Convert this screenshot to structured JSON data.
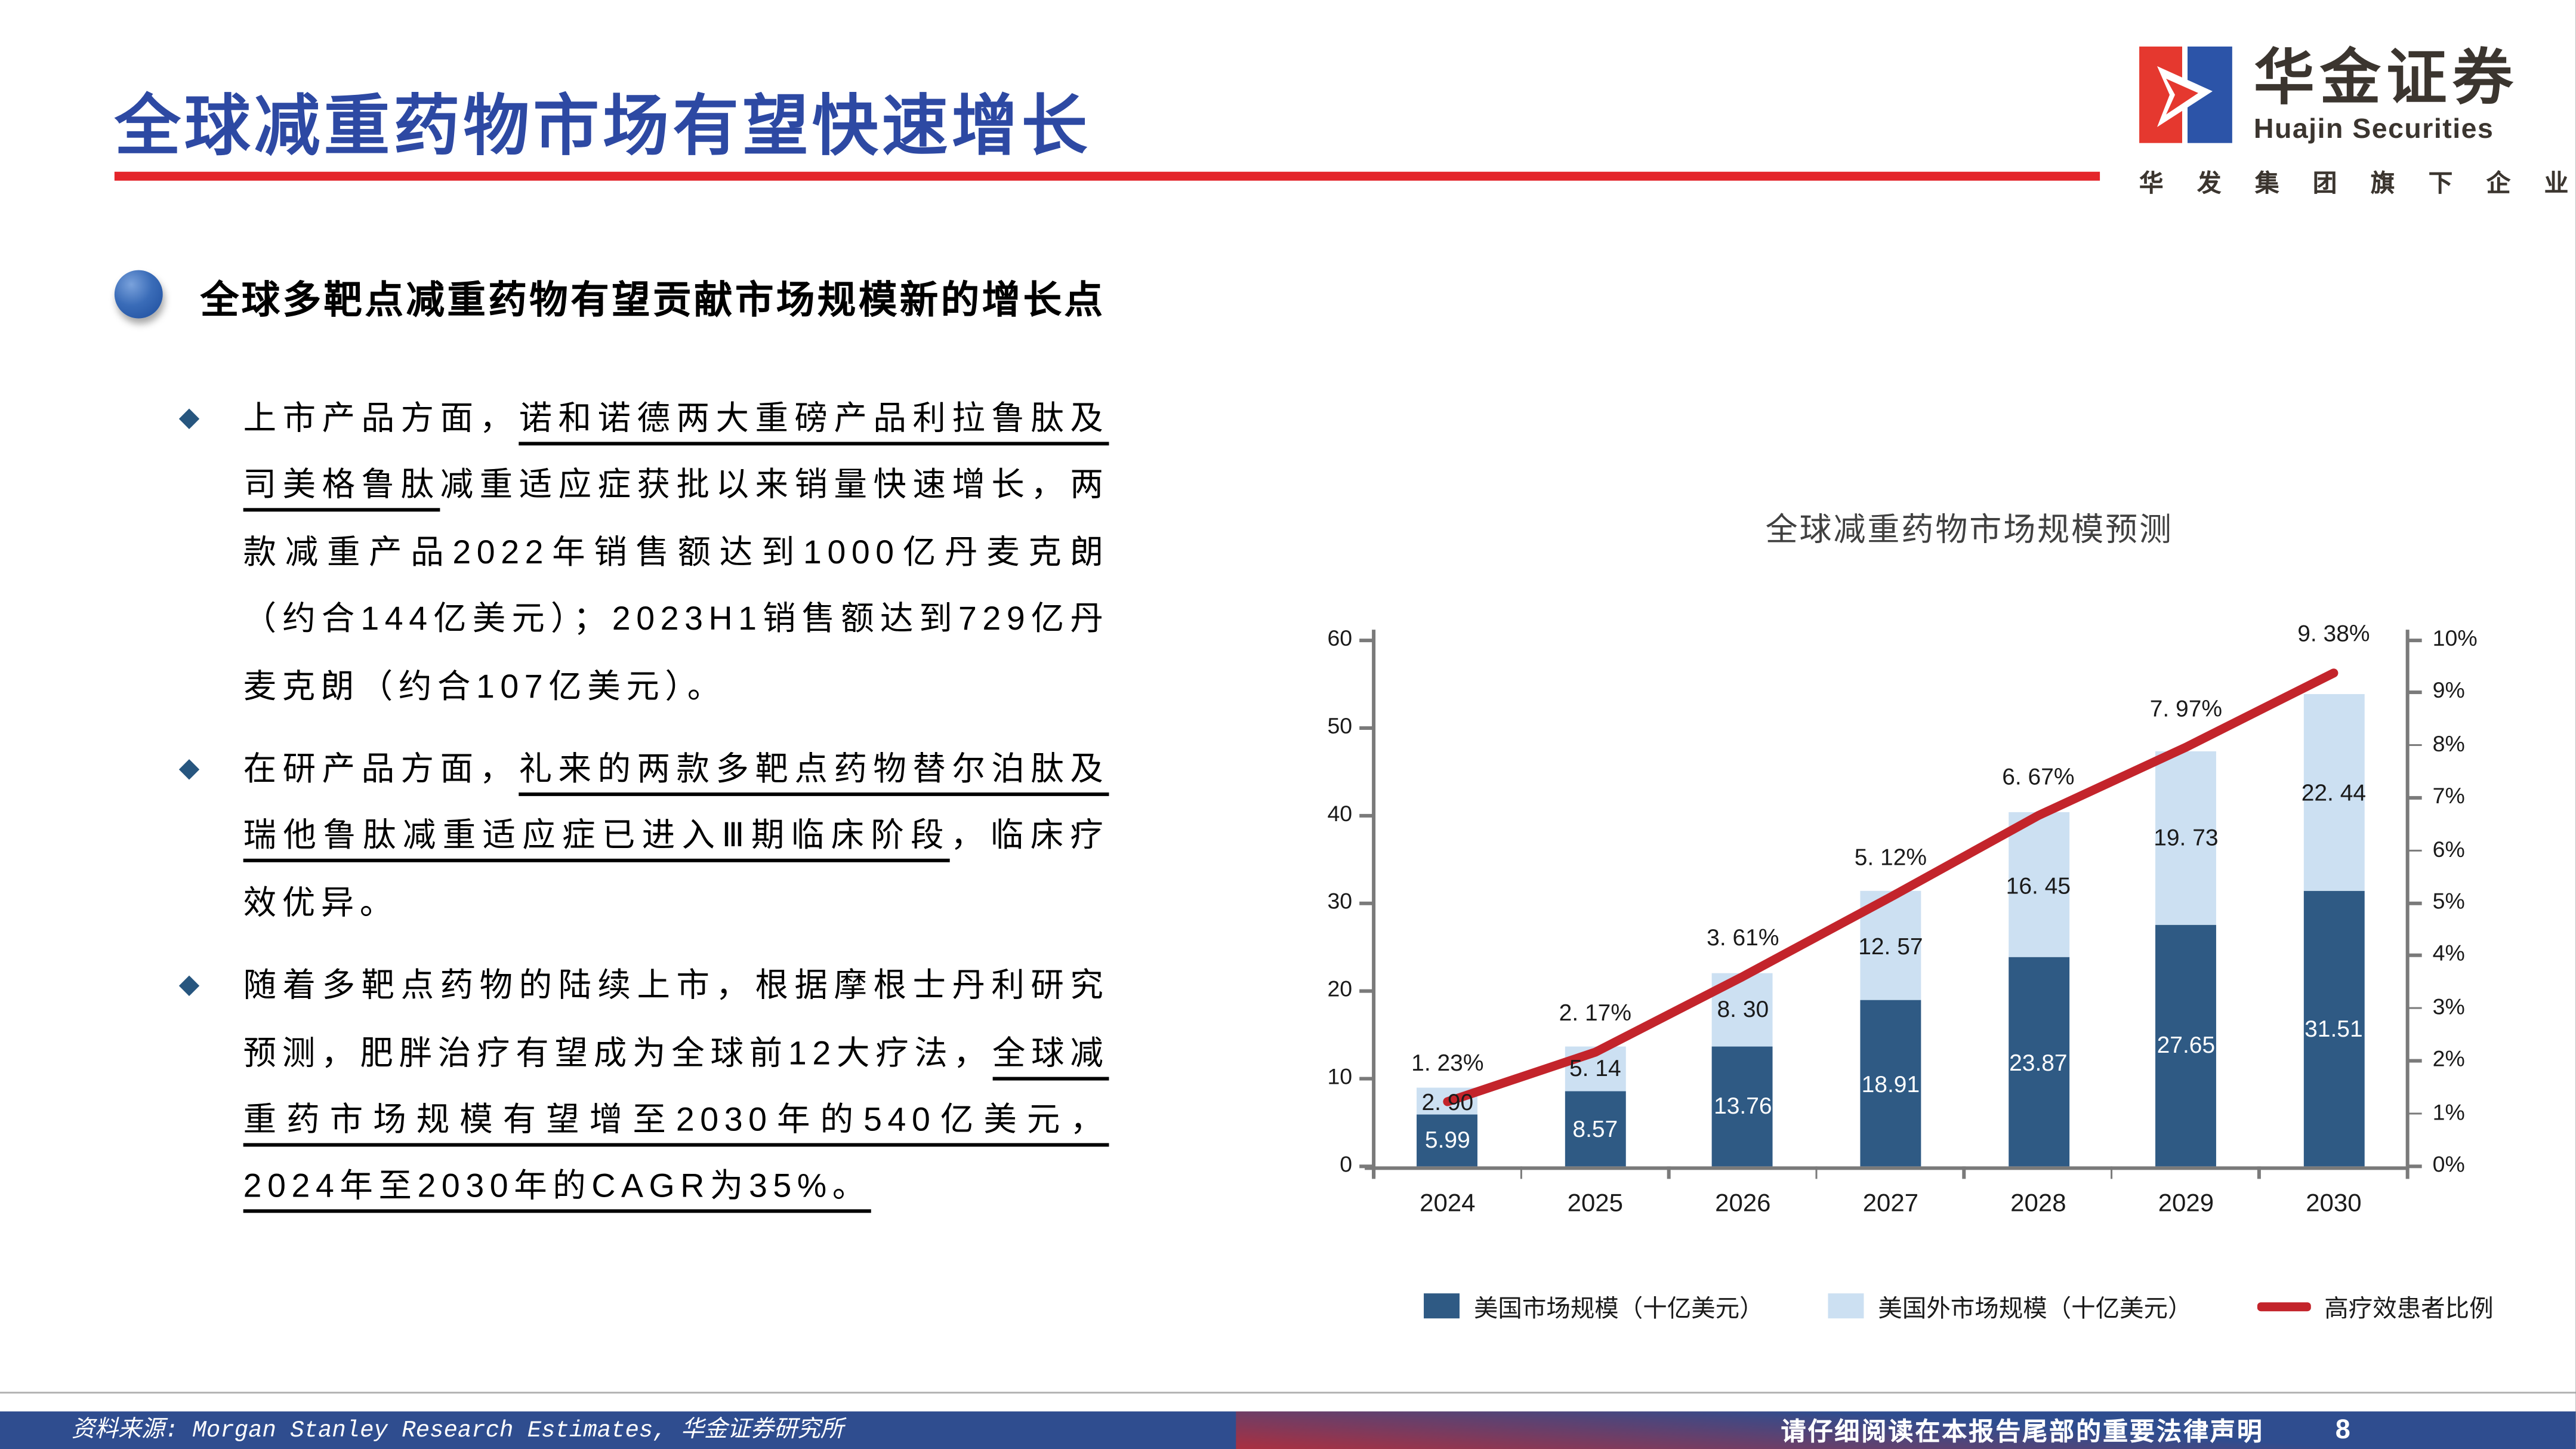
{
  "colors": {
    "accent_blue": "#2d49a3",
    "accent_red": "#e4252b",
    "bar_dark": "#2f5a84",
    "bar_light": "#cce0f2",
    "line_red": "#c3242b",
    "footer_navy": "#2f4d8f",
    "footer_red": "#b02e3c",
    "diamond_blue": "#27567f"
  },
  "header": {
    "title": "全球减重药物市场有望快速增长"
  },
  "logo": {
    "cn": "华金证券",
    "en": "Huajin Securities",
    "tagline": "华发集团旗下企业"
  },
  "section": {
    "heading": "全球多靶点减重药物有望贡献市场规模新的增长点"
  },
  "bullets": [
    {
      "segments": [
        {
          "t": "上市产品方面，",
          "u": false
        },
        {
          "t": "诺和诺德两大重磅产品利拉鲁肽及司美格鲁肽",
          "u": true
        },
        {
          "t": "减重适应症获批以来销量快速增长，两款减重产品2022年销售额达到1000亿丹麦克朗（约合144亿美元）；2023H1销售额达到729亿丹麦克朗（约合107亿美元）。",
          "u": false
        }
      ]
    },
    {
      "segments": [
        {
          "t": "在研产品方面，",
          "u": false
        },
        {
          "t": "礼来的两款多靶点药物替尔泊肽及瑞他鲁肽减重适应症已进入Ⅲ期临床阶段",
          "u": true
        },
        {
          "t": "，临床疗效优异。",
          "u": false
        }
      ]
    },
    {
      "segments": [
        {
          "t": "随着多靶点药物的陆续上市，根据摩根士丹利研究预测，肥胖治疗有望成为全球前12大疗法，",
          "u": false
        },
        {
          "t": "全球减重药市场规模有望增至2030年的540亿美元，2024年至2030年的CAGR为35%。",
          "u": true
        }
      ]
    }
  ],
  "chart_data": {
    "type": "combo-stacked-bar-line",
    "title": "全球减重药物市场规模预测",
    "categories": [
      "2024",
      "2025",
      "2026",
      "2027",
      "2028",
      "2029",
      "2030"
    ],
    "series": [
      {
        "name": "美国市场规模（十亿美元）",
        "type": "bar",
        "stack_order": 0,
        "color": "#2f5a84",
        "values": [
          5.99,
          8.57,
          13.76,
          18.91,
          23.87,
          27.65,
          31.51
        ],
        "labels": [
          "5.99",
          "8.57",
          "13.76",
          "18.91",
          "23.87",
          "27.65",
          "31.51"
        ],
        "label_color": "#ffffff"
      },
      {
        "name": "美国外市场规模（十亿美元）",
        "type": "bar",
        "stack_order": 1,
        "color": "#cce0f2",
        "values": [
          2.9,
          5.14,
          8.3,
          12.57,
          16.45,
          19.73,
          22.44
        ],
        "labels": [
          "2. 90",
          "5. 14",
          "8. 30",
          "12. 57",
          "16. 45",
          "19. 73",
          "22. 44"
        ],
        "label_color": "#1a1a1a"
      },
      {
        "name": "高疗效患者比例",
        "type": "line",
        "axis": "right",
        "color": "#c3242b",
        "values": [
          1.23,
          2.17,
          3.61,
          5.12,
          6.67,
          7.97,
          9.38
        ],
        "labels": [
          "1. 23%",
          "2. 17%",
          "3. 61%",
          "5. 12%",
          "6. 67%",
          "7. 97%",
          "9. 38%"
        ]
      }
    ],
    "left_axis": {
      "min": 0,
      "max": 60,
      "step": 10,
      "tick_labels": [
        "0",
        "10",
        "20",
        "30",
        "40",
        "50",
        "60"
      ]
    },
    "right_axis": {
      "min": 0,
      "max": 10,
      "step": 1,
      "format": "percent",
      "tick_labels": [
        "0%",
        "1%",
        "2%",
        "3%",
        "4%",
        "5%",
        "6%",
        "7%",
        "8%",
        "9%",
        "10%"
      ]
    },
    "grid": false,
    "legend_position": "bottom"
  },
  "footer": {
    "source": "资料来源: Morgan Stanley Research Estimates, 华金证券研究所",
    "disclaimer": "请仔细阅读在本报告尾部的重要法律声明",
    "page_number": "8"
  }
}
